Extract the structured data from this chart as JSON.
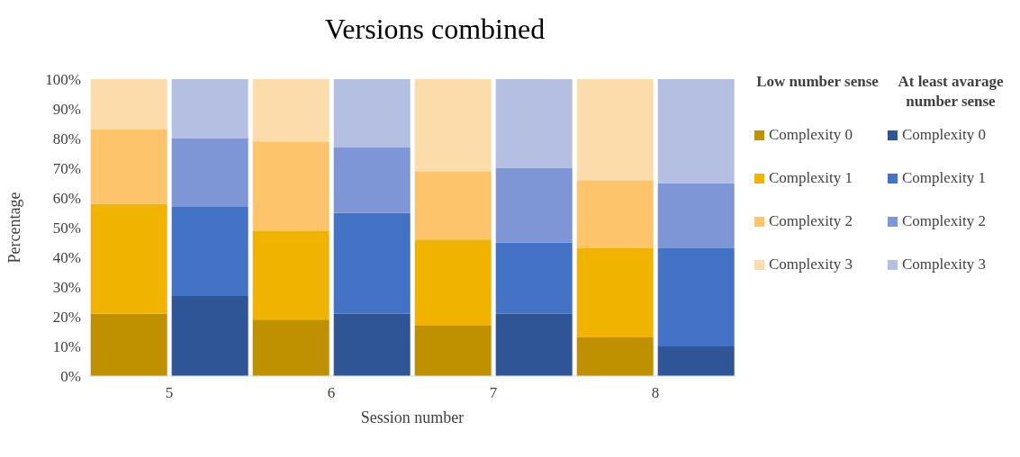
{
  "chart_data": {
    "type": "bar",
    "title": "Versions combined",
    "xlabel": "Session number",
    "ylabel": "Percentage",
    "categories": [
      "5",
      null,
      "6",
      null,
      "7",
      null,
      "8",
      null
    ],
    "stacked": true,
    "series": [
      {
        "name": "Complexity 0",
        "color": "#bf9000",
        "values": [
          21,
          null,
          19,
          null,
          17,
          null,
          13,
          null
        ]
      },
      {
        "name": "Complexity 1",
        "color": "#f0b400",
        "values": [
          37,
          null,
          30,
          null,
          29,
          null,
          30,
          null
        ]
      },
      {
        "name": "Complexity 2",
        "color": "#fdc46c",
        "values": [
          25,
          null,
          30,
          null,
          23,
          null,
          23,
          null
        ]
      },
      {
        "name": "Complexity 3",
        "color": "#fddcac",
        "values": [
          17,
          null,
          21,
          null,
          31,
          null,
          34,
          null
        ]
      },
      {
        "name": "Complexity 0",
        "color": "#2f5597",
        "values": [
          null,
          27,
          null,
          21,
          null,
          21,
          null,
          10
        ]
      },
      {
        "name": "Complexity 1",
        "color": "#4472c4",
        "values": [
          null,
          30,
          null,
          34,
          null,
          24,
          null,
          33
        ]
      },
      {
        "name": "Complexity 2",
        "color": "#7f96d6",
        "values": [
          null,
          23,
          null,
          22,
          null,
          25,
          null,
          22
        ]
      },
      {
        "name": "Complexity 3",
        "color": "#b4bfe2",
        "values": [
          null,
          20,
          null,
          23,
          null,
          30,
          null,
          35
        ]
      }
    ],
    "annotations": [
      "Low number sense",
      "At least avarage number sense"
    ],
    "ylim": [
      0,
      100
    ],
    "yticks": [
      {
        "value": 0,
        "label": "0%"
      },
      {
        "value": 10,
        "label": "10%"
      },
      {
        "value": 20,
        "label": "20%"
      },
      {
        "value": 30,
        "label": "30%"
      },
      {
        "value": 40,
        "label": "40%"
      },
      {
        "value": 50,
        "label": "50%"
      },
      {
        "value": 60,
        "label": "60%"
      },
      {
        "value": 70,
        "label": "70%"
      },
      {
        "value": 80,
        "label": "80%"
      },
      {
        "value": 90,
        "label": "90%"
      },
      {
        "value": 100,
        "label": "100%"
      }
    ],
    "legend": "right"
  }
}
